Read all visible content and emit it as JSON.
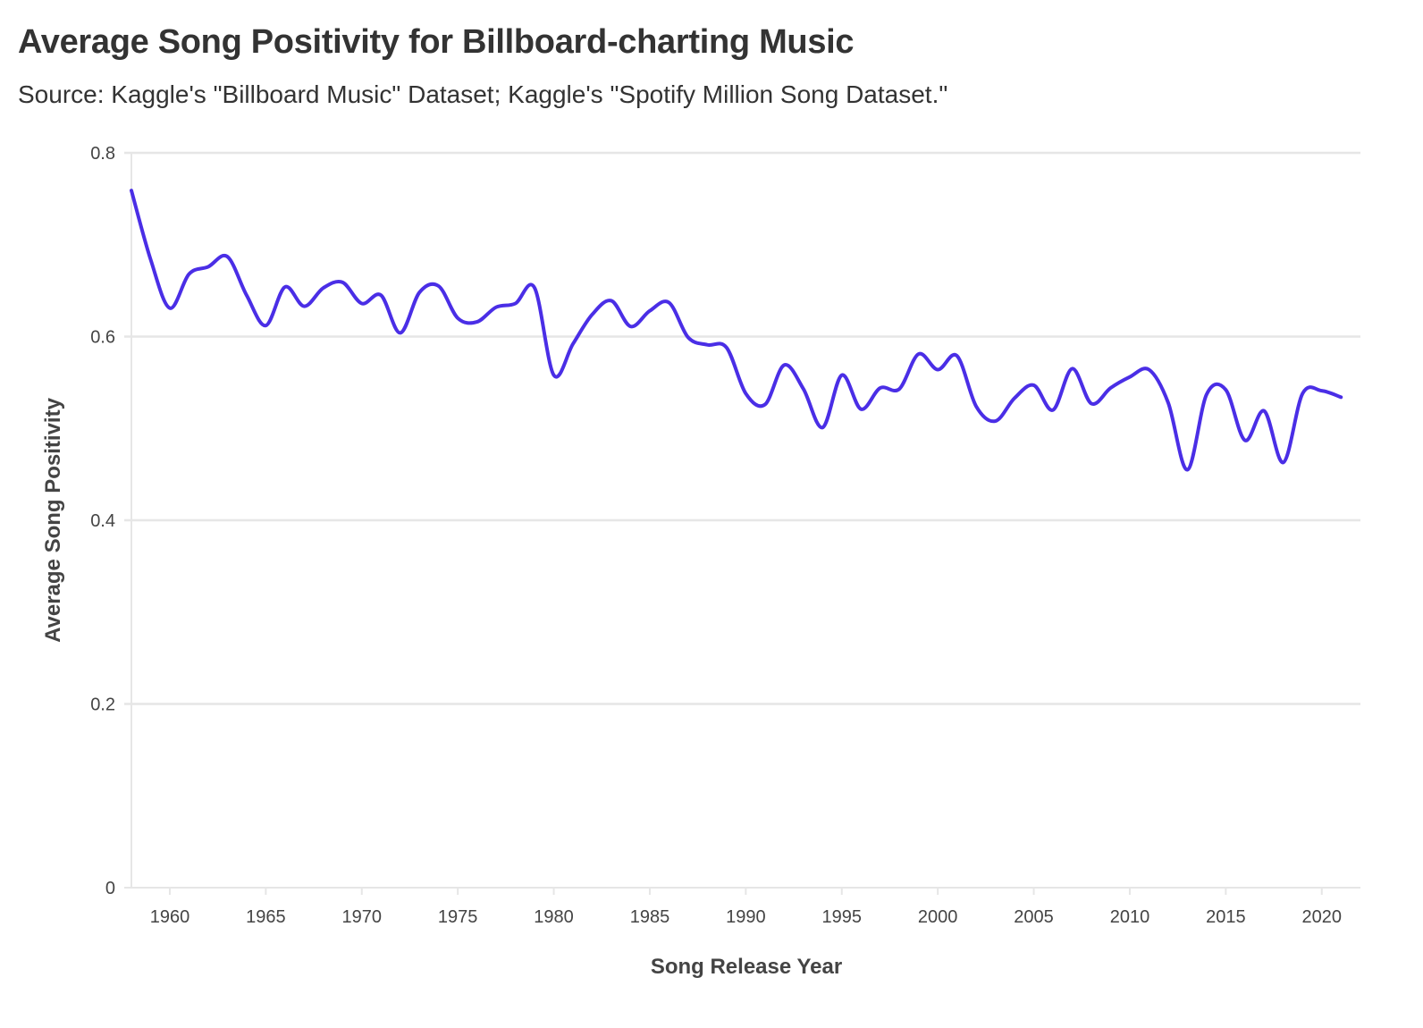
{
  "chart_data": {
    "type": "line",
    "title": "Average Song Positivity for Billboard-charting Music",
    "subtitle": "Source: Kaggle's \"Billboard Music\" Dataset; Kaggle's \"Spotify Million Song Dataset.\"",
    "xlabel": "Song Release Year",
    "ylabel": "Average Song Positivity",
    "xlim": [
      1958,
      2022
    ],
    "ylim": [
      0,
      0.8
    ],
    "grid": true,
    "x_ticks": [
      "1960",
      "1965",
      "1970",
      "1975",
      "1980",
      "1985",
      "1990",
      "1995",
      "2000",
      "2005",
      "2010",
      "2015",
      "2020"
    ],
    "y_ticks": [
      "0",
      "0.2",
      "0.4",
      "0.6",
      "0.8"
    ],
    "line_color": "#4a2ee6",
    "series": [
      {
        "name": "Average Song Positivity",
        "x": [
          1958,
          1959,
          1960,
          1961,
          1962,
          1963,
          1964,
          1965,
          1966,
          1967,
          1968,
          1969,
          1970,
          1971,
          1972,
          1973,
          1974,
          1975,
          1976,
          1977,
          1978,
          1979,
          1980,
          1981,
          1982,
          1983,
          1984,
          1985,
          1986,
          1987,
          1988,
          1989,
          1990,
          1991,
          1992,
          1993,
          1994,
          1995,
          1996,
          1997,
          1998,
          1999,
          2000,
          2001,
          2002,
          2003,
          2004,
          2005,
          2006,
          2007,
          2008,
          2009,
          2010,
          2011,
          2012,
          2013,
          2014,
          2015,
          2016,
          2017,
          2018,
          2019,
          2020,
          2021
        ],
        "y": [
          0.759,
          0.684,
          0.631,
          0.668,
          0.676,
          0.687,
          0.645,
          0.612,
          0.654,
          0.633,
          0.653,
          0.659,
          0.636,
          0.645,
          0.604,
          0.648,
          0.655,
          0.62,
          0.616,
          0.632,
          0.636,
          0.653,
          0.558,
          0.592,
          0.624,
          0.639,
          0.611,
          0.628,
          0.637,
          0.599,
          0.591,
          0.588,
          0.538,
          0.526,
          0.569,
          0.543,
          0.501,
          0.558,
          0.521,
          0.544,
          0.543,
          0.581,
          0.564,
          0.579,
          0.524,
          0.508,
          0.533,
          0.547,
          0.52,
          0.565,
          0.527,
          0.544,
          0.556,
          0.564,
          0.528,
          0.455,
          0.537,
          0.542,
          0.487,
          0.519,
          0.463,
          0.538,
          0.541,
          0.534
        ]
      }
    ]
  }
}
